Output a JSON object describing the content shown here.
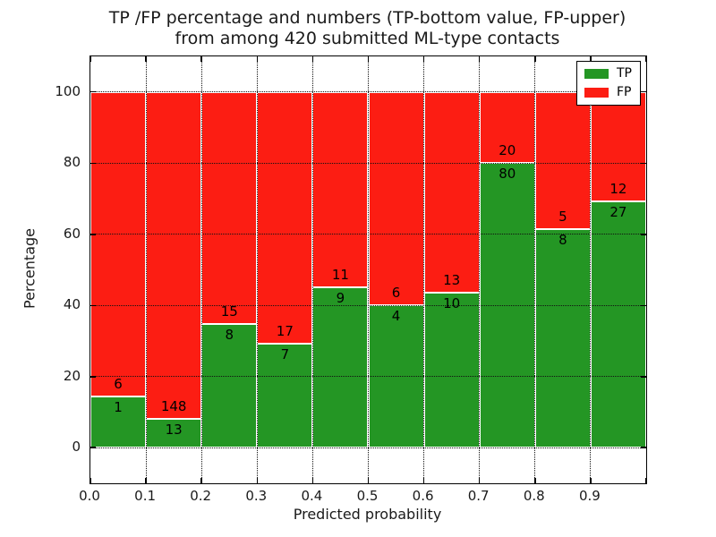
{
  "figure": {
    "title_line1": "TP /FP percentage and numbers (TP-bottom value, FP-upper)",
    "title_line2": "from among 420 submitted ML-type contacts"
  },
  "chart_data": {
    "type": "bar",
    "subtype": "stacked-percentage",
    "title": "TP /FP percentage and numbers (TP-bottom value, FP-upper) from among 420 submitted ML-type contacts",
    "xlabel": "Predicted probability",
    "ylabel": "Percentage",
    "xlim": [
      0.0,
      1.0
    ],
    "ylim": [
      -10,
      110
    ],
    "grid": true,
    "x_tick_labels": [
      "0.0",
      "0.1",
      "0.2",
      "0.3",
      "0.4",
      "0.5",
      "0.6",
      "0.7",
      "0.8",
      "0.9"
    ],
    "y_ticks": [
      0,
      20,
      40,
      60,
      80,
      100
    ],
    "categories": [
      "0.0-0.1",
      "0.1-0.2",
      "0.2-0.3",
      "0.3-0.4",
      "0.4-0.5",
      "0.5-0.6",
      "0.6-0.7",
      "0.7-0.8",
      "0.8-0.9",
      "0.9-1.0"
    ],
    "series": [
      {
        "name": "TP",
        "color": "#249624",
        "counts": [
          1,
          13,
          8,
          7,
          9,
          4,
          10,
          80,
          8,
          27
        ]
      },
      {
        "name": "FP",
        "color": "#fc1d13",
        "counts": [
          6,
          148,
          15,
          17,
          11,
          6,
          13,
          20,
          5,
          12
        ]
      }
    ],
    "tp_percent": [
      14.29,
      8.07,
      34.78,
      29.17,
      45.0,
      40.0,
      43.48,
      80.0,
      61.54,
      69.23
    ],
    "legend": {
      "position": "upper right",
      "entries": [
        {
          "label": "TP",
          "color": "#249624"
        },
        {
          "label": "FP",
          "color": "#fc1d13"
        }
      ]
    }
  }
}
